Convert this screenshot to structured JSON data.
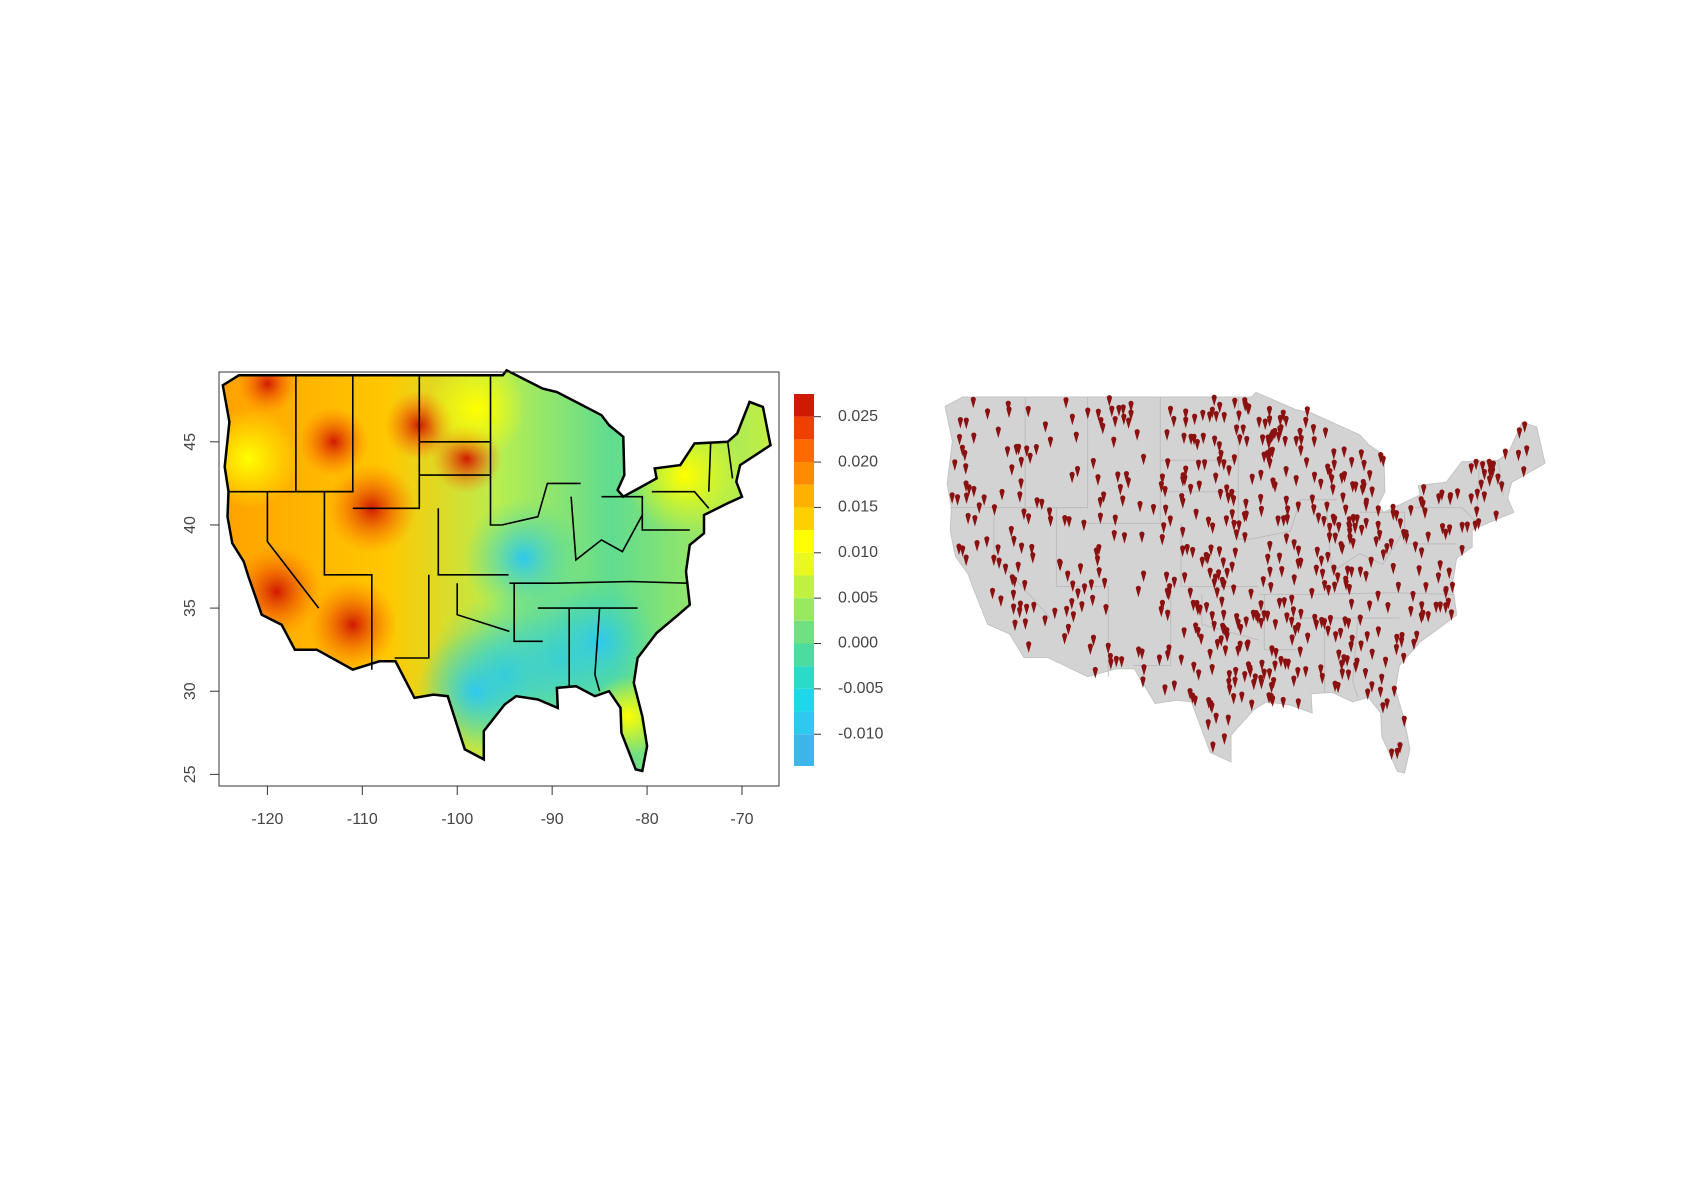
{
  "left_map": {
    "xlim": [
      -125.1,
      -66.1
    ],
    "ylim": [
      24.3,
      49.2
    ],
    "xticks": [
      -120,
      -110,
      -100,
      -90,
      -80,
      -70
    ],
    "yticks": [
      25,
      30,
      35,
      40,
      45
    ],
    "colorbar": {
      "levels": [
        -0.0135,
        -0.01,
        -0.0075,
        -0.005,
        -0.0025,
        0,
        0.0025,
        0.005,
        0.0075,
        0.01,
        0.0125,
        0.015,
        0.0175,
        0.02,
        0.0225,
        0.025,
        0.0275
      ],
      "colors": [
        "#3db5ea",
        "#2ec8f0",
        "#1ed8ea",
        "#2adcc8",
        "#4cdca0",
        "#70e080",
        "#98e860",
        "#c0f040",
        "#e8f820",
        "#ffff00",
        "#ffd000",
        "#ffb000",
        "#ff8c00",
        "#ff6a00",
        "#f04000",
        "#d01a00"
      ],
      "ticks": [
        {
          "value": -0.01,
          "label": "-0.010"
        },
        -0.005,
        {
          "value": 0,
          "label": "0.000"
        },
        0.005,
        {
          "value": 0.01,
          "label": "0.010"
        },
        0.015,
        {
          "value": 0.02,
          "label": "0.020"
        },
        0.025
      ]
    }
  }
}
